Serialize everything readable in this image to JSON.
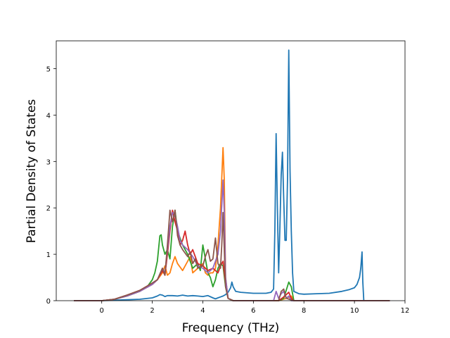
{
  "chart_data": {
    "type": "line",
    "title": "",
    "xlabel": "Frequency (THz)",
    "ylabel": "Partial Density of States",
    "xlim": [
      -1.8,
      12
    ],
    "ylim": [
      0,
      5.6
    ],
    "xticks": [
      0,
      2,
      4,
      6,
      8,
      10,
      12
    ],
    "yticks": [
      0,
      1,
      2,
      3,
      4,
      5
    ],
    "grid": false,
    "legend": "none",
    "series": [
      {
        "color": "#1f77b4",
        "points": [
          [
            -1.1,
            0
          ],
          [
            0,
            0
          ],
          [
            0.5,
            0.01
          ],
          [
            1,
            0.02
          ],
          [
            1.5,
            0.03
          ],
          [
            2,
            0.06
          ],
          [
            2.2,
            0.1
          ],
          [
            2.3,
            0.13
          ],
          [
            2.4,
            0.12
          ],
          [
            2.5,
            0.09
          ],
          [
            2.6,
            0.11
          ],
          [
            2.8,
            0.11
          ],
          [
            3,
            0.1
          ],
          [
            3.2,
            0.12
          ],
          [
            3.4,
            0.1
          ],
          [
            3.6,
            0.11
          ],
          [
            3.8,
            0.1
          ],
          [
            4.0,
            0.09
          ],
          [
            4.2,
            0.11
          ],
          [
            4.4,
            0.06
          ],
          [
            4.5,
            0.04
          ],
          [
            4.6,
            0.06
          ],
          [
            4.7,
            0.08
          ],
          [
            4.8,
            0.1
          ],
          [
            4.9,
            0.13
          ],
          [
            5.0,
            0.18
          ],
          [
            5.1,
            0.28
          ],
          [
            5.15,
            0.4
          ],
          [
            5.2,
            0.3
          ],
          [
            5.3,
            0.2
          ],
          [
            5.5,
            0.18
          ],
          [
            6,
            0.16
          ],
          [
            6.5,
            0.16
          ],
          [
            6.7,
            0.18
          ],
          [
            6.8,
            0.25
          ],
          [
            6.85,
            1.5
          ],
          [
            6.9,
            3.6
          ],
          [
            6.95,
            2.0
          ],
          [
            7.0,
            0.6
          ],
          [
            7.05,
            1.6
          ],
          [
            7.1,
            2.7
          ],
          [
            7.15,
            3.2
          ],
          [
            7.2,
            2.2
          ],
          [
            7.25,
            1.3
          ],
          [
            7.3,
            1.3
          ],
          [
            7.35,
            2.6
          ],
          [
            7.4,
            5.4
          ],
          [
            7.45,
            2.8
          ],
          [
            7.5,
            1.5
          ],
          [
            7.55,
            0.6
          ],
          [
            7.6,
            0.2
          ],
          [
            7.8,
            0.15
          ],
          [
            8,
            0.14
          ],
          [
            8.5,
            0.15
          ],
          [
            9,
            0.16
          ],
          [
            9.5,
            0.2
          ],
          [
            9.8,
            0.24
          ],
          [
            10,
            0.28
          ],
          [
            10.1,
            0.35
          ],
          [
            10.2,
            0.5
          ],
          [
            10.25,
            0.7
          ],
          [
            10.3,
            1.05
          ],
          [
            10.33,
            0.4
          ],
          [
            10.37,
            0.0
          ],
          [
            11.4,
            0
          ]
        ]
      },
      {
        "color": "#ff7f0e",
        "points": [
          [
            -1.1,
            0
          ],
          [
            0,
            0
          ],
          [
            0.5,
            0.03
          ],
          [
            1,
            0.1
          ],
          [
            1.5,
            0.2
          ],
          [
            2,
            0.35
          ],
          [
            2.2,
            0.45
          ],
          [
            2.4,
            0.6
          ],
          [
            2.5,
            0.75
          ],
          [
            2.6,
            0.55
          ],
          [
            2.7,
            0.6
          ],
          [
            2.8,
            0.8
          ],
          [
            2.9,
            0.95
          ],
          [
            3.0,
            0.8
          ],
          [
            3.2,
            0.65
          ],
          [
            3.4,
            0.85
          ],
          [
            3.5,
            0.95
          ],
          [
            3.6,
            0.6
          ],
          [
            3.8,
            0.7
          ],
          [
            4.0,
            0.8
          ],
          [
            4.1,
            0.6
          ],
          [
            4.2,
            0.55
          ],
          [
            4.3,
            0.6
          ],
          [
            4.4,
            0.6
          ],
          [
            4.5,
            0.7
          ],
          [
            4.6,
            1.2
          ],
          [
            4.7,
            2.0
          ],
          [
            4.8,
            3.3
          ],
          [
            4.85,
            2.6
          ],
          [
            4.9,
            0.5
          ],
          [
            5.0,
            0.05
          ],
          [
            5.2,
            0
          ],
          [
            6,
            0
          ],
          [
            7,
            0
          ],
          [
            7.3,
            0.05
          ],
          [
            7.5,
            0.1
          ],
          [
            7.6,
            0
          ],
          [
            11.4,
            0
          ]
        ]
      },
      {
        "color": "#2ca02c",
        "points": [
          [
            -1.1,
            0
          ],
          [
            0,
            0
          ],
          [
            0.5,
            0.03
          ],
          [
            1,
            0.1
          ],
          [
            1.5,
            0.2
          ],
          [
            1.8,
            0.3
          ],
          [
            2,
            0.45
          ],
          [
            2.1,
            0.6
          ],
          [
            2.2,
            0.85
          ],
          [
            2.3,
            1.4
          ],
          [
            2.35,
            1.42
          ],
          [
            2.4,
            1.2
          ],
          [
            2.5,
            1.0
          ],
          [
            2.6,
            1.1
          ],
          [
            2.7,
            0.9
          ],
          [
            2.8,
            1.6
          ],
          [
            2.9,
            1.95
          ],
          [
            3.0,
            1.5
          ],
          [
            3.2,
            1.2
          ],
          [
            3.4,
            1.0
          ],
          [
            3.6,
            0.7
          ],
          [
            3.8,
            0.8
          ],
          [
            3.9,
            0.65
          ],
          [
            4.0,
            1.2
          ],
          [
            4.1,
            0.9
          ],
          [
            4.2,
            0.6
          ],
          [
            4.3,
            0.5
          ],
          [
            4.4,
            0.3
          ],
          [
            4.5,
            0.45
          ],
          [
            4.6,
            0.7
          ],
          [
            4.7,
            0.8
          ],
          [
            4.8,
            0.75
          ],
          [
            4.9,
            0.3
          ],
          [
            5.0,
            0.05
          ],
          [
            5.2,
            0
          ],
          [
            7,
            0
          ],
          [
            7.2,
            0.05
          ],
          [
            7.4,
            0.4
          ],
          [
            7.5,
            0.3
          ],
          [
            7.6,
            0
          ],
          [
            11.4,
            0
          ]
        ]
      },
      {
        "color": "#d62728",
        "points": [
          [
            -1.1,
            0
          ],
          [
            0,
            0
          ],
          [
            0.5,
            0.03
          ],
          [
            1,
            0.12
          ],
          [
            1.5,
            0.22
          ],
          [
            2,
            0.38
          ],
          [
            2.2,
            0.45
          ],
          [
            2.4,
            0.65
          ],
          [
            2.5,
            0.55
          ],
          [
            2.6,
            1.0
          ],
          [
            2.7,
            1.5
          ],
          [
            2.8,
            1.95
          ],
          [
            2.9,
            1.7
          ],
          [
            3.0,
            1.5
          ],
          [
            3.1,
            1.2
          ],
          [
            3.2,
            1.3
          ],
          [
            3.3,
            1.5
          ],
          [
            3.4,
            1.2
          ],
          [
            3.5,
            1.0
          ],
          [
            3.6,
            1.1
          ],
          [
            3.7,
            0.95
          ],
          [
            3.8,
            0.8
          ],
          [
            4.0,
            0.75
          ],
          [
            4.2,
            0.65
          ],
          [
            4.4,
            0.7
          ],
          [
            4.6,
            0.6
          ],
          [
            4.7,
            0.75
          ],
          [
            4.8,
            0.85
          ],
          [
            4.9,
            0.35
          ],
          [
            5.0,
            0.05
          ],
          [
            5.2,
            0
          ],
          [
            7,
            0
          ],
          [
            7.2,
            0.08
          ],
          [
            7.4,
            0.18
          ],
          [
            7.5,
            0.05
          ],
          [
            7.6,
            0
          ],
          [
            11.4,
            0
          ]
        ]
      },
      {
        "color": "#9467bd",
        "points": [
          [
            -1.1,
            0
          ],
          [
            0,
            0
          ],
          [
            0.5,
            0.03
          ],
          [
            1,
            0.1
          ],
          [
            1.5,
            0.2
          ],
          [
            2,
            0.35
          ],
          [
            2.2,
            0.45
          ],
          [
            2.4,
            0.7
          ],
          [
            2.5,
            0.6
          ],
          [
            2.6,
            1.1
          ],
          [
            2.7,
            1.6
          ],
          [
            2.8,
            1.9
          ],
          [
            2.9,
            1.85
          ],
          [
            3.0,
            1.6
          ],
          [
            3.1,
            1.3
          ],
          [
            3.2,
            1.2
          ],
          [
            3.4,
            1.1
          ],
          [
            3.6,
            0.95
          ],
          [
            3.8,
            0.75
          ],
          [
            4.0,
            0.7
          ],
          [
            4.2,
            0.6
          ],
          [
            4.4,
            0.7
          ],
          [
            4.6,
            1.0
          ],
          [
            4.7,
            1.5
          ],
          [
            4.8,
            2.6
          ],
          [
            4.85,
            1.9
          ],
          [
            4.9,
            0.5
          ],
          [
            5.0,
            0.05
          ],
          [
            5.2,
            0
          ],
          [
            6.8,
            0
          ],
          [
            6.9,
            0.2
          ],
          [
            7.0,
            0.05
          ],
          [
            7.1,
            0.15
          ],
          [
            7.2,
            0.2
          ],
          [
            7.3,
            0.05
          ],
          [
            7.4,
            0.1
          ],
          [
            7.5,
            0
          ],
          [
            11.4,
            0
          ]
        ]
      },
      {
        "color": "#8c564b",
        "points": [
          [
            -1.1,
            0
          ],
          [
            0,
            0
          ],
          [
            0.5,
            0.03
          ],
          [
            1,
            0.12
          ],
          [
            1.5,
            0.22
          ],
          [
            2,
            0.38
          ],
          [
            2.2,
            0.45
          ],
          [
            2.4,
            0.7
          ],
          [
            2.5,
            0.55
          ],
          [
            2.6,
            1.2
          ],
          [
            2.7,
            1.95
          ],
          [
            2.8,
            1.7
          ],
          [
            2.9,
            1.95
          ],
          [
            3.0,
            1.4
          ],
          [
            3.1,
            1.2
          ],
          [
            3.2,
            1.1
          ],
          [
            3.4,
            0.95
          ],
          [
            3.5,
            1.05
          ],
          [
            3.6,
            0.8
          ],
          [
            3.7,
            0.9
          ],
          [
            3.8,
            0.7
          ],
          [
            4.0,
            0.75
          ],
          [
            4.1,
            0.95
          ],
          [
            4.2,
            1.1
          ],
          [
            4.3,
            0.85
          ],
          [
            4.4,
            0.9
          ],
          [
            4.5,
            1.35
          ],
          [
            4.6,
            0.8
          ],
          [
            4.7,
            0.7
          ],
          [
            4.75,
            1.2
          ],
          [
            4.8,
            1.9
          ],
          [
            4.85,
            1.1
          ],
          [
            4.9,
            0.3
          ],
          [
            5.0,
            0.05
          ],
          [
            5.2,
            0
          ],
          [
            7,
            0
          ],
          [
            7.1,
            0.2
          ],
          [
            7.2,
            0.25
          ],
          [
            7.3,
            0.05
          ],
          [
            7.6,
            0
          ],
          [
            11.4,
            0
          ]
        ]
      }
    ]
  }
}
